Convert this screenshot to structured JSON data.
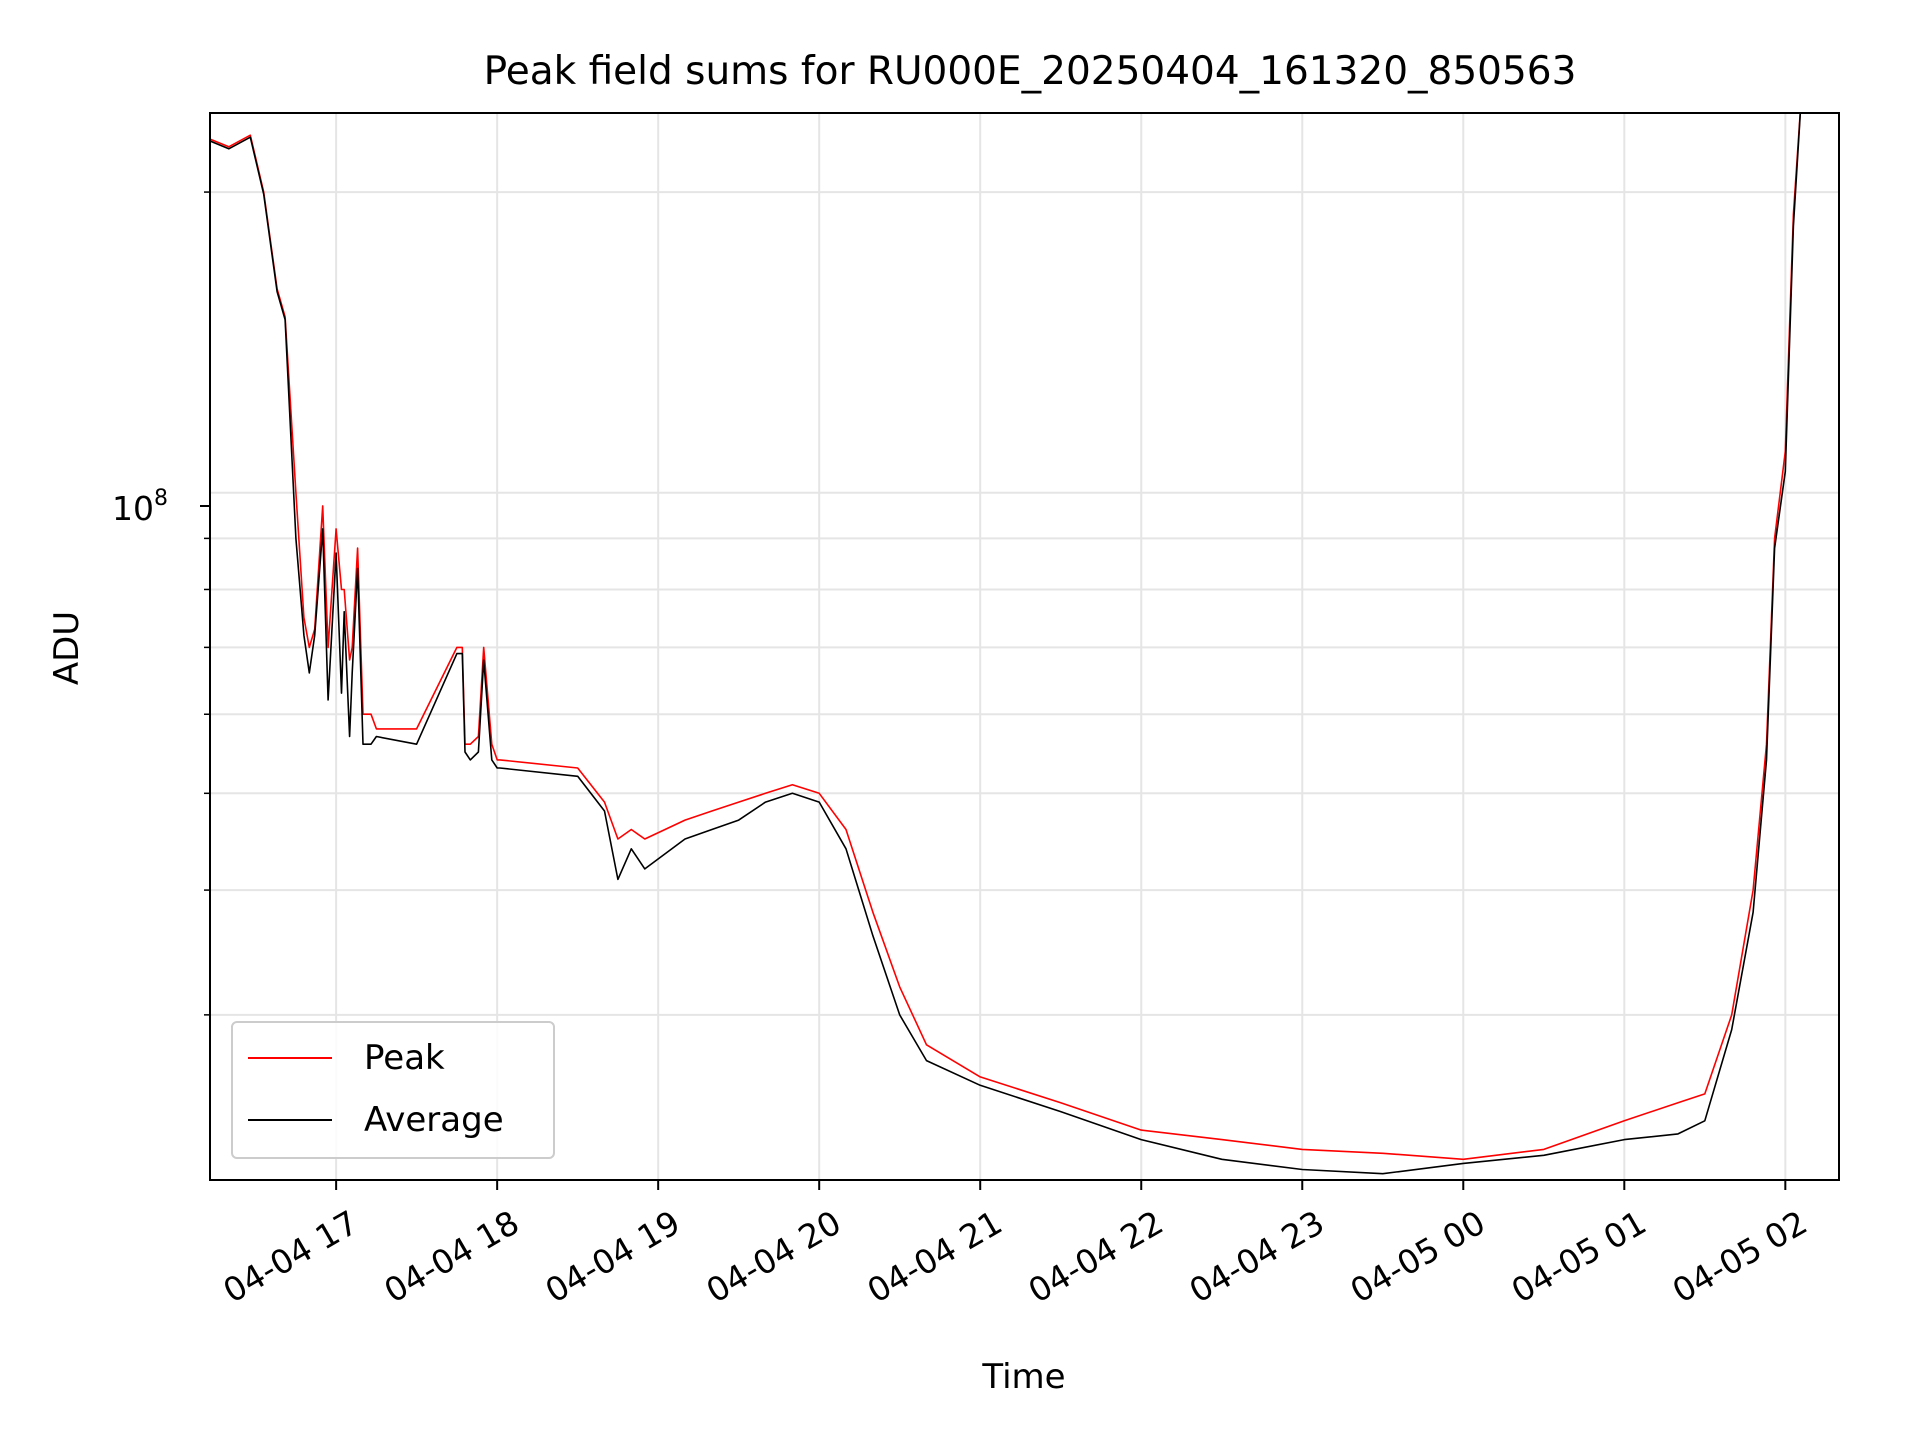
{
  "chart_data": {
    "type": "line",
    "title": "Peak field sums for RU000E_20250404_161320_850563",
    "xlabel": "Time",
    "ylabel": "ADU",
    "y_scale": "log",
    "grid": true,
    "legend_location": "lower left",
    "x_tick_labels": [
      "04-04 17",
      "04-04 18",
      "04-04 19",
      "04-04 20",
      "04-04 21",
      "04-04 22",
      "04-04 23",
      "04-05 00",
      "04-05 01",
      "04-05 02"
    ],
    "y_tick_major": "10^8",
    "xlim": [
      "2025-04-04 16:13",
      "2025-04-05 02:20"
    ],
    "ylim": [
      20500000,
      240000000
    ],
    "series": [
      {
        "name": "Peak",
        "color": "#ff0000",
        "x": [
          "2025-04-04 16:13",
          "2025-04-04 16:20",
          "2025-04-04 16:28",
          "2025-04-04 16:33",
          "2025-04-04 16:38",
          "2025-04-04 16:41",
          "2025-04-04 16:45",
          "2025-04-04 16:48",
          "2025-04-04 16:50",
          "2025-04-04 16:52",
          "2025-04-04 16:55",
          "2025-04-04 16:57",
          "2025-04-04 17:00",
          "2025-04-04 17:02",
          "2025-04-04 17:03",
          "2025-04-04 17:05",
          "2025-04-04 17:06",
          "2025-04-04 17:08",
          "2025-04-04 17:10",
          "2025-04-04 17:13",
          "2025-04-04 17:15",
          "2025-04-04 17:30",
          "2025-04-04 17:45",
          "2025-04-04 17:47",
          "2025-04-04 17:48",
          "2025-04-04 17:50",
          "2025-04-04 17:53",
          "2025-04-04 17:55",
          "2025-04-04 17:58",
          "2025-04-04 18:00",
          "2025-04-04 18:01",
          "2025-04-04 18:30",
          "2025-04-04 18:40",
          "2025-04-04 18:45",
          "2025-04-04 18:50",
          "2025-04-04 18:55",
          "2025-04-04 19:10",
          "2025-04-04 19:20",
          "2025-04-04 19:30",
          "2025-04-04 19:40",
          "2025-04-04 19:50",
          "2025-04-04 20:00",
          "2025-04-04 20:10",
          "2025-04-04 20:20",
          "2025-04-04 20:30",
          "2025-04-04 20:40",
          "2025-04-04 21:00",
          "2025-04-04 21:30",
          "2025-04-04 22:00",
          "2025-04-04 22:30",
          "2025-04-04 23:00",
          "2025-04-04 23:30",
          "2025-04-05 00:00",
          "2025-04-05 00:30",
          "2025-04-05 01:00",
          "2025-04-05 01:20",
          "2025-04-05 01:30",
          "2025-04-05 01:40",
          "2025-04-05 01:48",
          "2025-04-05 01:53",
          "2025-04-05 01:56",
          "2025-04-05 02:00",
          "2025-04-05 02:03",
          "2025-04-05 02:06"
        ],
        "values": [
          226000000,
          222000000,
          228000000,
          200000000,
          160000000,
          150000000,
          100000000,
          75000000,
          70000000,
          73000000,
          97000000,
          70000000,
          92000000,
          80000000,
          80000000,
          68000000,
          70000000,
          88000000,
          60000000,
          60000000,
          58000000,
          58000000,
          70000000,
          70000000,
          56000000,
          56000000,
          57000000,
          70000000,
          56000000,
          54000000,
          54000000,
          53000000,
          49000000,
          45000000,
          46000000,
          45000000,
          47000000,
          48000000,
          49000000,
          50000000,
          51000000,
          50000000,
          46000000,
          38000000,
          32000000,
          28000000,
          26000000,
          24500000,
          23000000,
          22500000,
          22000000,
          21800000,
          21500000,
          22000000,
          23500000,
          24500000,
          25000000,
          30000000,
          40000000,
          56000000,
          90000000,
          110000000,
          190000000,
          250000000
        ]
      },
      {
        "name": "Average",
        "color": "#000000",
        "x": [
          "2025-04-04 16:13",
          "2025-04-04 16:20",
          "2025-04-04 16:28",
          "2025-04-04 16:33",
          "2025-04-04 16:38",
          "2025-04-04 16:41",
          "2025-04-04 16:45",
          "2025-04-04 16:48",
          "2025-04-04 16:50",
          "2025-04-04 16:52",
          "2025-04-04 16:55",
          "2025-04-04 16:57",
          "2025-04-04 17:00",
          "2025-04-04 17:02",
          "2025-04-04 17:03",
          "2025-04-04 17:05",
          "2025-04-04 17:06",
          "2025-04-04 17:08",
          "2025-04-04 17:10",
          "2025-04-04 17:13",
          "2025-04-04 17:15",
          "2025-04-04 17:30",
          "2025-04-04 17:45",
          "2025-04-04 17:47",
          "2025-04-04 17:48",
          "2025-04-04 17:50",
          "2025-04-04 17:53",
          "2025-04-04 17:55",
          "2025-04-04 17:58",
          "2025-04-04 18:00",
          "2025-04-04 18:01",
          "2025-04-04 18:30",
          "2025-04-04 18:40",
          "2025-04-04 18:45",
          "2025-04-04 18:50",
          "2025-04-04 18:55",
          "2025-04-04 19:10",
          "2025-04-04 19:20",
          "2025-04-04 19:30",
          "2025-04-04 19:40",
          "2025-04-04 19:50",
          "2025-04-04 20:00",
          "2025-04-04 20:10",
          "2025-04-04 20:20",
          "2025-04-04 20:30",
          "2025-04-04 20:40",
          "2025-04-04 21:00",
          "2025-04-04 21:30",
          "2025-04-04 22:00",
          "2025-04-04 22:30",
          "2025-04-04 23:00",
          "2025-04-04 23:30",
          "2025-04-05 00:00",
          "2025-04-05 00:30",
          "2025-04-05 01:00",
          "2025-04-05 01:20",
          "2025-04-05 01:30",
          "2025-04-05 01:40",
          "2025-04-05 01:48",
          "2025-04-05 01:53",
          "2025-04-05 01:56",
          "2025-04-05 02:00",
          "2025-04-05 02:03",
          "2025-04-05 02:06"
        ],
        "values": [
          225000000,
          221000000,
          227000000,
          199000000,
          159000000,
          149000000,
          90000000,
          72000000,
          66000000,
          72000000,
          92000000,
          62000000,
          87000000,
          63000000,
          76000000,
          57000000,
          66000000,
          84000000,
          56000000,
          56000000,
          57000000,
          56000000,
          69000000,
          69000000,
          55000000,
          54000000,
          55000000,
          68000000,
          54000000,
          53000000,
          53000000,
          52000000,
          48000000,
          41000000,
          44000000,
          42000000,
          45000000,
          46000000,
          47000000,
          49000000,
          50000000,
          49000000,
          44000000,
          36000000,
          30000000,
          27000000,
          25500000,
          24000000,
          22500000,
          21500000,
          21000000,
          20800000,
          21300000,
          21700000,
          22500000,
          22800000,
          23500000,
          29000000,
          38000000,
          54000000,
          88000000,
          105000000,
          185000000,
          250000000
        ]
      }
    ]
  }
}
